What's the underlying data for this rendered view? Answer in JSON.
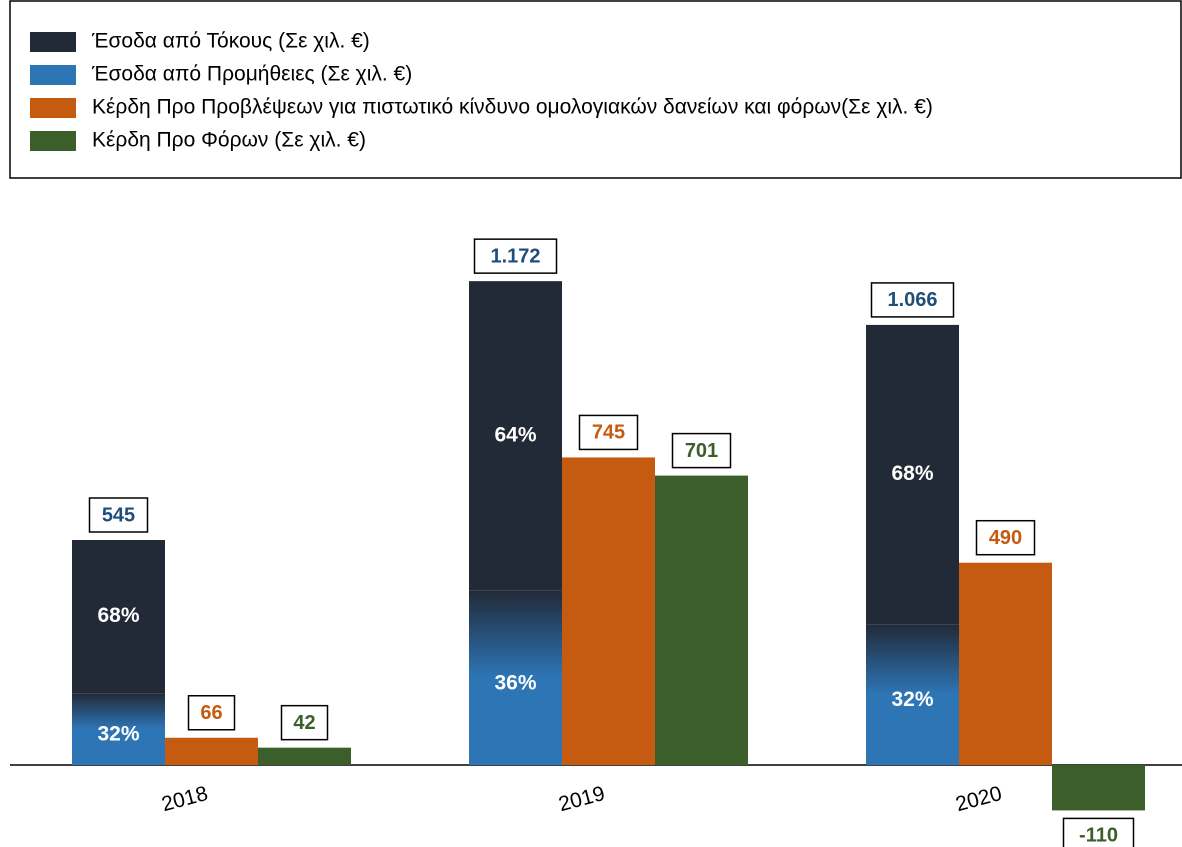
{
  "chart_data": {
    "type": "bar",
    "categories": [
      "2018",
      "2019",
      "2020"
    ],
    "series": [
      {
        "name": "Έσοδα από Τόκους (Σε χιλ. €)",
        "color": "#222a38",
        "values": [
          371,
          750,
          725
        ],
        "shares": [
          68,
          64,
          68
        ],
        "share_labels": [
          "68%",
          "64%",
          "68%"
        ],
        "stack": "income"
      },
      {
        "name": "Έσοδα από Προμήθειες (Σε χιλ. €)",
        "color": "#2e75b6",
        "values": [
          174,
          422,
          341
        ],
        "shares": [
          32,
          36,
          32
        ],
        "share_labels": [
          "32%",
          "36%",
          "32%"
        ],
        "stack": "income"
      },
      {
        "name": "Κέρδη Προ Προβλέψεων για πιστωτικό κίνδυνο ομολογιακών δανείων και φόρων(Σε χιλ. €)",
        "color": "#c55a11",
        "values": [
          66,
          745,
          490
        ]
      },
      {
        "name": "Κέρδη Προ Φόρων (Σε χιλ. €)",
        "color": "#3b5e2b",
        "values": [
          42,
          701,
          -110
        ]
      }
    ],
    "totals": [
      545,
      1172,
      1066
    ],
    "total_labels": [
      "545",
      "1.172",
      "1.066"
    ],
    "total_label_color": "#1f4e79",
    "legend": "top"
  }
}
